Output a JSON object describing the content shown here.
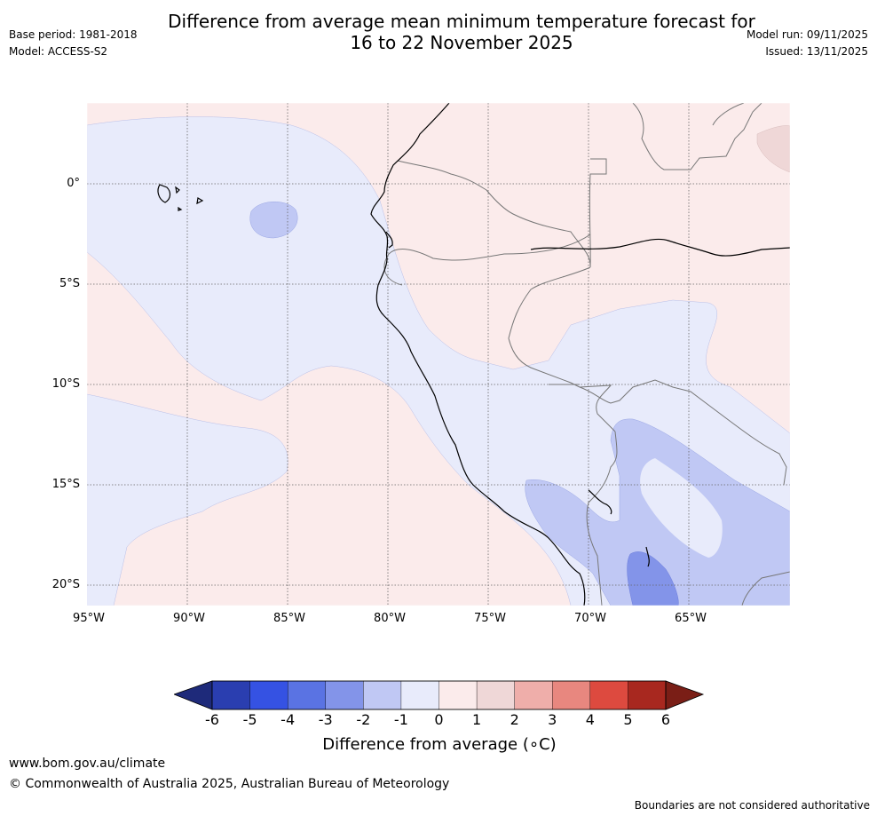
{
  "header": {
    "title_line1": "Difference from average mean minimum temperature forecast for",
    "title_line2": "16 to 22 November 2025",
    "base_period": "Base period: 1981-2018",
    "model": "Model: ACCESS-S2",
    "model_run": "Model run: 09/11/2025",
    "issued": "Issued: 13/11/2025"
  },
  "map": {
    "region": "Western South America and eastern Pacific",
    "lat_ticks": [
      "0°",
      "5°S",
      "10°S",
      "15°S",
      "20°S"
    ],
    "lon_ticks": [
      "95°W",
      "90°W",
      "85°W",
      "80°W",
      "75°W",
      "70°W",
      "65°W"
    ]
  },
  "legend": {
    "label": "Difference from average (∘C)",
    "ticks": [
      "-6",
      "-5",
      "-4",
      "-3",
      "-2",
      "-1",
      "0",
      "1",
      "2",
      "3",
      "4",
      "5",
      "6"
    ],
    "colors": [
      "#2a3eb0",
      "#3552e3",
      "#5a73e3",
      "#8394e9",
      "#c0c8f4",
      "#e8ebfb",
      "#fbebeb",
      "#efd7d7",
      "#efaeaa",
      "#e8877f",
      "#dd4a3f",
      "#a8281f"
    ],
    "under_color": "#1e2a7a",
    "over_color": "#7a1e16"
  },
  "footer": {
    "url": "www.bom.gov.au/climate",
    "copyright": "© Commonwealth of Australia 2025, Australian Bureau of Meteorology",
    "disclaimer": "Boundaries are not considered authoritative"
  }
}
